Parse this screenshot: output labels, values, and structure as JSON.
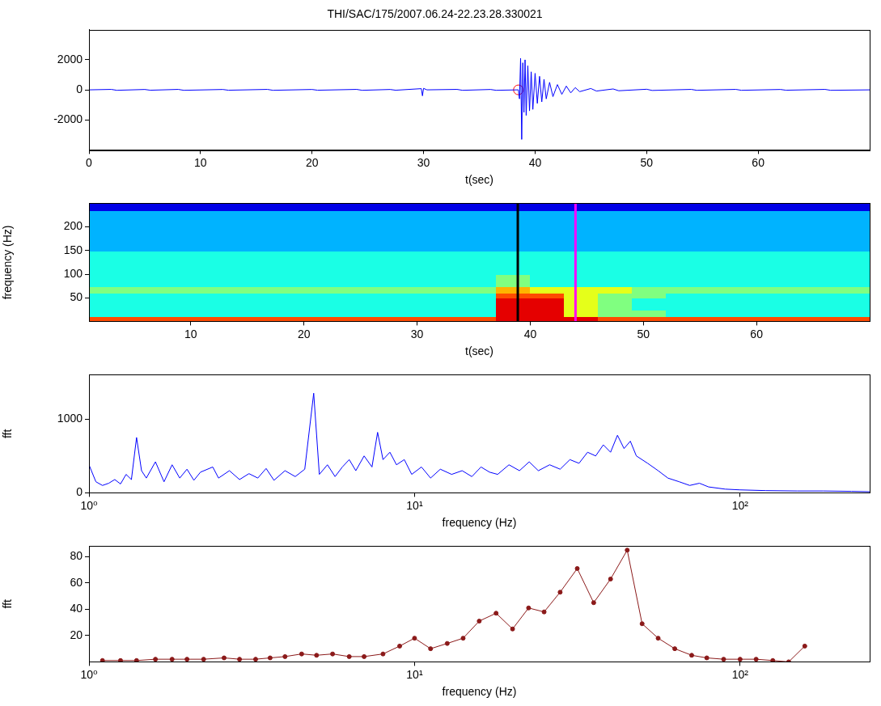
{
  "chart_data": [
    {
      "type": "line",
      "title": "THI/SAC/175/2007.06.24-22.23.28.330021",
      "x_label": "t(sec)",
      "xlim": [
        0,
        70
      ],
      "xticks": [
        0,
        10,
        20,
        30,
        40,
        50,
        60
      ],
      "ylim": [
        -4000,
        4000
      ],
      "yticks": [
        -2000,
        0,
        2000
      ],
      "grid": false,
      "series": [
        {
          "color": "#0000ff",
          "line_style": "solid",
          "marker": "none",
          "x": [
            0,
            2,
            2.5,
            5,
            5.5,
            8,
            8.5,
            12,
            12.5,
            16,
            16.5,
            20,
            20.5,
            24,
            24.5,
            27,
            27.5,
            29.8,
            29.9,
            30,
            30.3,
            33,
            33.5,
            36,
            36.5,
            38.5,
            38.6,
            38.7,
            38.8,
            38.9,
            39,
            39.1,
            39.2,
            39.35,
            39.5,
            39.65,
            39.8,
            40,
            40.2,
            40.4,
            40.6,
            40.8,
            41,
            41.3,
            41.6,
            42,
            42.4,
            42.8,
            43.2,
            43.6,
            44,
            45,
            45.5,
            47,
            47.5,
            50,
            50.5,
            54,
            54.5,
            58,
            58.5,
            62,
            62.5,
            66,
            66.5,
            70
          ],
          "values": [
            0,
            30,
            -30,
            25,
            -25,
            30,
            -30,
            25,
            -25,
            30,
            -30,
            25,
            -25,
            30,
            -30,
            25,
            -25,
            80,
            -400,
            100,
            0,
            30,
            -30,
            25,
            -30,
            0,
            -600,
            2100,
            -3300,
            1800,
            -1500,
            2000,
            -1700,
            1600,
            -1400,
            1200,
            -1300,
            1100,
            -900,
            900,
            -800,
            700,
            -600,
            500,
            -450,
            350,
            -300,
            250,
            -200,
            150,
            -120,
            90,
            -80,
            60,
            -60,
            40,
            -40,
            30,
            -30,
            30,
            -30,
            25,
            -25,
            30,
            -30,
            0
          ]
        },
        {
          "type": "scatter",
          "color": "#ff0000",
          "marker": "circle",
          "x": [
            38.5
          ],
          "values": [
            0
          ]
        }
      ]
    },
    {
      "type": "heatmap",
      "x_label": "t(sec)",
      "y_label": "frequency (Hz)",
      "xlim": [
        1,
        70
      ],
      "xticks": [
        10,
        20,
        30,
        40,
        50,
        60
      ],
      "ylim": [
        0,
        250
      ],
      "yticks": [
        50,
        100,
        150,
        200
      ],
      "grid": false,
      "x_edges": [
        1,
        4,
        7,
        10,
        13,
        16,
        19,
        22,
        25,
        28,
        31,
        34,
        37,
        40,
        43,
        46,
        49,
        52,
        55,
        58,
        61,
        64,
        67,
        70
      ],
      "y_edges": [
        0,
        10,
        25,
        50,
        60,
        75,
        100,
        150,
        200,
        235,
        250
      ],
      "color_range": [
        0,
        10
      ],
      "cells": [
        [
          8,
          8,
          8,
          8,
          8,
          8,
          8,
          8,
          8,
          8,
          8,
          8,
          9,
          9,
          9,
          8,
          8,
          8,
          8,
          8,
          8,
          8,
          8
        ],
        [
          4,
          4,
          4,
          4,
          4,
          4,
          4,
          4,
          4,
          4,
          4,
          4,
          9,
          9,
          6,
          5,
          5,
          4,
          4,
          4,
          4,
          4,
          4
        ],
        [
          4,
          4,
          4,
          4,
          4,
          4,
          4,
          4,
          4,
          4,
          4,
          4,
          9,
          9,
          6,
          5,
          4,
          4,
          4,
          4,
          4,
          4,
          4
        ],
        [
          4,
          4,
          4,
          4,
          4,
          4,
          4,
          4,
          4,
          4,
          4,
          4,
          8,
          8,
          6,
          5,
          5,
          4,
          4,
          4,
          4,
          4,
          4
        ],
        [
          5,
          5,
          5,
          5,
          5,
          5,
          5,
          5,
          5,
          5,
          5,
          5,
          7,
          6,
          6,
          6,
          5,
          5,
          5,
          5,
          5,
          5,
          5
        ],
        [
          4,
          4,
          4,
          4,
          4,
          4,
          4,
          4,
          4,
          4,
          4,
          4,
          5,
          4,
          4,
          4,
          4,
          4,
          4,
          4,
          4,
          4,
          4
        ],
        [
          4,
          4,
          4,
          4,
          4,
          4,
          4,
          4,
          4,
          4,
          4,
          4,
          4,
          4,
          4,
          4,
          4,
          4,
          4,
          4,
          4,
          4,
          4
        ],
        [
          3,
          3,
          3,
          3,
          3,
          3,
          3,
          3,
          3,
          3,
          3,
          3,
          3,
          3,
          3,
          3,
          3,
          3,
          3,
          3,
          3,
          3,
          3
        ],
        [
          3,
          3,
          3,
          3,
          3,
          3,
          3,
          3,
          3,
          3,
          3,
          3,
          3,
          3,
          3,
          3,
          3,
          3,
          3,
          3,
          3,
          3,
          3
        ],
        [
          1,
          1,
          1,
          1,
          1,
          1,
          1,
          1,
          1,
          1,
          1,
          1,
          1,
          1,
          1,
          1,
          1,
          1,
          1,
          1,
          1,
          1,
          1
        ]
      ],
      "vlines": [
        {
          "x": 38.9,
          "color": "#000000"
        },
        {
          "x": 44.0,
          "color": "#ff00ff"
        }
      ]
    },
    {
      "type": "line",
      "x_label": "frequency (Hz)",
      "y_label": "fft",
      "log": "x",
      "xlim": [
        1,
        250
      ],
      "xticks": [
        {
          "value": 1,
          "label": "10⁰"
        },
        {
          "value": 10,
          "label": "10¹"
        },
        {
          "value": 100,
          "label": "10²"
        }
      ],
      "ylim": [
        0,
        1600
      ],
      "yticks": [
        0,
        1000
      ],
      "grid": false,
      "series": [
        {
          "color": "#0000ff",
          "line_style": "solid",
          "marker": "none",
          "x": [
            1,
            1.05,
            1.1,
            1.15,
            1.2,
            1.25,
            1.3,
            1.35,
            1.4,
            1.45,
            1.5,
            1.6,
            1.7,
            1.8,
            1.9,
            2,
            2.1,
            2.2,
            2.4,
            2.5,
            2.7,
            2.9,
            3.1,
            3.3,
            3.5,
            3.7,
            4,
            4.3,
            4.6,
            4.9,
            5.1,
            5.4,
            5.7,
            6,
            6.3,
            6.6,
            7,
            7.4,
            7.7,
            8,
            8.4,
            8.8,
            9.3,
            9.8,
            10.5,
            11.2,
            12,
            13,
            14,
            15,
            16,
            17,
            18,
            19.5,
            21,
            22.5,
            24,
            26,
            28,
            30,
            32,
            34,
            36,
            38,
            40,
            42,
            44,
            46,
            48,
            52,
            56,
            60,
            65,
            70,
            75,
            80,
            90,
            100,
            120,
            150,
            180,
            220,
            250
          ],
          "values": [
            380,
            150,
            100,
            130,
            180,
            120,
            250,
            180,
            750,
            300,
            200,
            420,
            150,
            380,
            200,
            320,
            170,
            280,
            350,
            200,
            300,
            180,
            260,
            200,
            330,
            170,
            300,
            220,
            320,
            1350,
            250,
            380,
            220,
            350,
            450,
            300,
            500,
            350,
            820,
            450,
            550,
            380,
            450,
            250,
            350,
            200,
            320,
            250,
            300,
            220,
            350,
            280,
            250,
            380,
            300,
            420,
            300,
            380,
            320,
            450,
            400,
            550,
            500,
            650,
            550,
            780,
            600,
            700,
            500,
            400,
            300,
            200,
            150,
            100,
            130,
            80,
            50,
            40,
            30,
            25,
            25,
            20,
            15
          ]
        }
      ]
    },
    {
      "type": "line",
      "x_label": "frequency (Hz)",
      "y_label": "fft",
      "log": "x",
      "xlim": [
        1,
        250
      ],
      "xticks": [
        {
          "value": 1,
          "label": "10⁰"
        },
        {
          "value": 10,
          "label": "10¹"
        },
        {
          "value": 100,
          "label": "10²"
        }
      ],
      "ylim": [
        0,
        88
      ],
      "yticks": [
        20,
        40,
        60,
        80
      ],
      "grid": false,
      "series": [
        {
          "color": "#8b1a1a",
          "line_style": "solid",
          "marker": "dot",
          "x": [
            1.1,
            1.25,
            1.4,
            1.6,
            1.8,
            2,
            2.25,
            2.6,
            2.9,
            3.25,
            3.6,
            4,
            4.5,
            5,
            5.6,
            6.3,
            7,
            8,
            9,
            10,
            11.2,
            12.6,
            14.1,
            15.8,
            17.8,
            20,
            22.4,
            25,
            28,
            31.6,
            35.5,
            40,
            45,
            50,
            56,
            63,
            71,
            79,
            89,
            100,
            112,
            126,
            141,
            158
          ],
          "values": [
            1,
            1,
            1,
            2,
            2,
            2,
            2,
            3,
            2,
            2,
            3,
            4,
            6,
            5,
            6,
            4,
            4,
            6,
            12,
            18,
            10,
            14,
            18,
            31,
            37,
            25,
            41,
            38,
            53,
            71,
            45,
            63,
            85,
            29,
            18,
            10,
            5,
            3,
            2,
            2,
            2,
            1,
            0,
            12
          ]
        }
      ]
    }
  ]
}
